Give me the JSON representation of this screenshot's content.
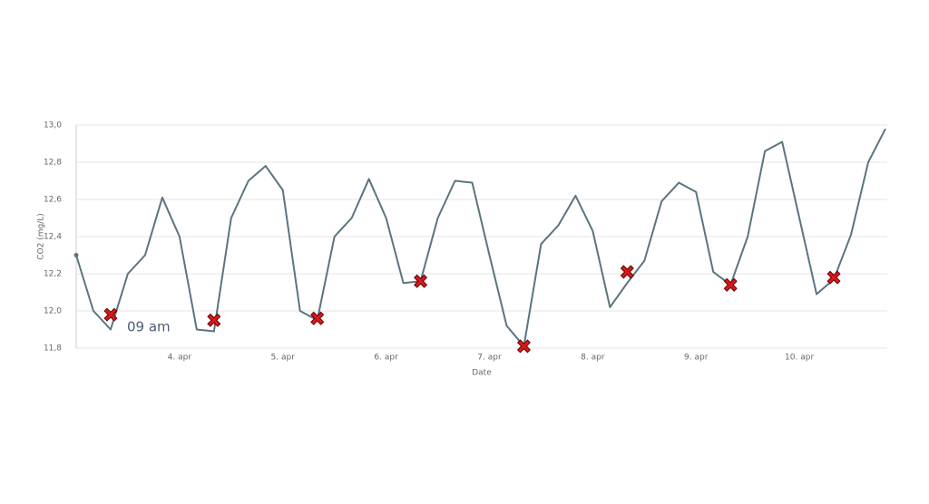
{
  "chart_data": {
    "type": "line",
    "y_label": "CO2 (mg/L)",
    "x_label": "Date",
    "annotation": "09 am",
    "categories": [
      null,
      null,
      null,
      null,
      null,
      null,
      "4. apr",
      null,
      null,
      null,
      null,
      null,
      "5. apr",
      null,
      null,
      null,
      null,
      null,
      "6. apr",
      null,
      null,
      null,
      null,
      null,
      "7. apr",
      null,
      null,
      null,
      null,
      null,
      "8. apr",
      null,
      null,
      null,
      null,
      null,
      "9. apr",
      null,
      null,
      null,
      null,
      null,
      "10. apr",
      null,
      null,
      null,
      null,
      null
    ],
    "series": [
      {
        "name": "CO2",
        "color": "#5a7580",
        "values": [
          12.3,
          12.0,
          11.9,
          12.2,
          12.3,
          12.61,
          12.4,
          11.9,
          11.89,
          12.5,
          12.7,
          12.78,
          12.65,
          12.0,
          11.95,
          12.4,
          12.5,
          12.71,
          12.5,
          12.15,
          12.16,
          12.5,
          12.7,
          12.69,
          12.3,
          11.92,
          11.81,
          12.36,
          12.46,
          12.62,
          12.43,
          12.02,
          12.15,
          12.27,
          12.59,
          12.69,
          12.64,
          12.21,
          12.14,
          12.4,
          12.86,
          12.91,
          12.5,
          12.09,
          12.17,
          12.41,
          12.8,
          12.98
        ]
      },
      {
        "name": "09 am",
        "color": "#d7191c",
        "marker": "x",
        "values": [
          null,
          null,
          11.98,
          null,
          null,
          null,
          null,
          null,
          11.95,
          null,
          null,
          null,
          null,
          null,
          11.96,
          null,
          null,
          null,
          null,
          null,
          12.16,
          null,
          null,
          null,
          null,
          null,
          11.81,
          null,
          null,
          null,
          null,
          null,
          12.21,
          null,
          null,
          null,
          null,
          null,
          12.14,
          null,
          null,
          null,
          null,
          null,
          12.18,
          null,
          null,
          null
        ]
      }
    ],
    "ylim": [
      11.8,
      13.0
    ],
    "yticks": [
      {
        "value": 11.8,
        "label": "11,8"
      },
      {
        "value": 12.0,
        "label": "12,0"
      },
      {
        "value": 12.2,
        "label": "12,2"
      },
      {
        "value": 12.4,
        "label": "12,4"
      },
      {
        "value": 12.6,
        "label": "12,6"
      },
      {
        "value": 12.8,
        "label": "12,8"
      },
      {
        "value": 13.0,
        "label": "13,0"
      }
    ],
    "grid": true
  }
}
